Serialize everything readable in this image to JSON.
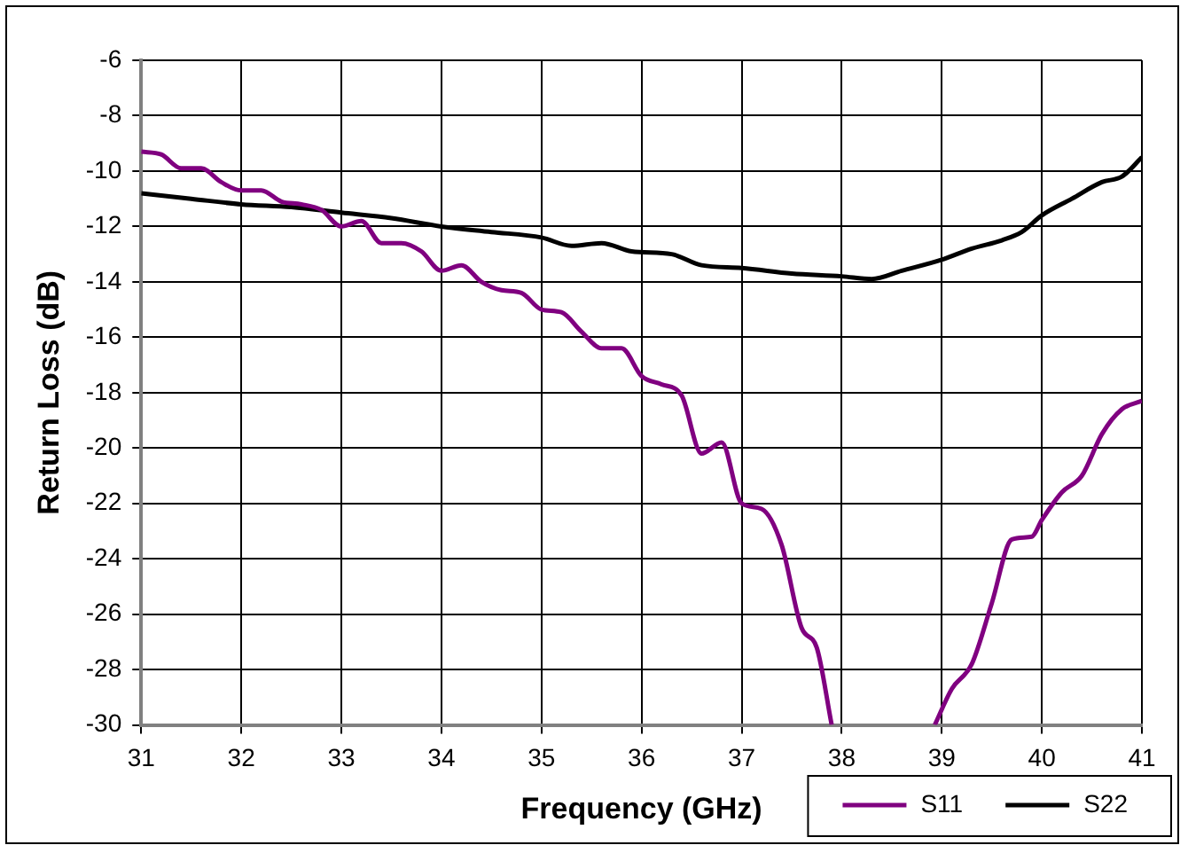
{
  "chart_data": {
    "type": "line",
    "xlabel": "Frequency (GHz)",
    "ylabel": "Return Loss (dB)",
    "xlim": [
      31,
      41
    ],
    "xticks": [
      31,
      32,
      33,
      34,
      35,
      36,
      37,
      38,
      39,
      40,
      41
    ],
    "ylim": [
      -30,
      -6
    ],
    "yticks": [
      -30,
      -28,
      -26,
      -24,
      -22,
      -20,
      -18,
      -16,
      -14,
      -12,
      -10,
      -8,
      -6
    ],
    "grid": true,
    "legend": "bottom right",
    "marker": "none",
    "line_style": "solid",
    "series": [
      {
        "name": "S11",
        "color": "#800080",
        "x": [
          31,
          31.2,
          31.4,
          31.6,
          31.8,
          32,
          32.2,
          32.4,
          32.6,
          32.8,
          33,
          33.2,
          33.4,
          33.6,
          33.8,
          34,
          34.2,
          34.4,
          34.6,
          34.8,
          35,
          35.2,
          35.4,
          35.6,
          35.8,
          36,
          36.2,
          36.4,
          36.6,
          36.8,
          37,
          37.2,
          37.4,
          37.6,
          37.75,
          37.9,
          38.4,
          38.93,
          39.1,
          39.3,
          39.5,
          39.7,
          39.9,
          40,
          40.2,
          40.4,
          40.6,
          40.8,
          41
        ],
        "values": [
          -9.3,
          -9.4,
          -9.9,
          -9.9,
          -10.4,
          -10.7,
          -10.7,
          -11.1,
          -11.2,
          -11.4,
          -12,
          -11.8,
          -12.6,
          -12.6,
          -12.9,
          -13.6,
          -13.4,
          -14,
          -14.3,
          -14.4,
          -15,
          -15.1,
          -15.8,
          -16.4,
          -16.4,
          -17.4,
          -17.7,
          -18.1,
          -20.2,
          -19.8,
          -22,
          -22.2,
          -23.5,
          -26.5,
          -27.2,
          -30,
          null,
          -30,
          -28.7,
          -27.8,
          -25.6,
          -23.3,
          -23.2,
          -22.6,
          -21.6,
          -21,
          -19.5,
          -18.6,
          -18.3
        ]
      },
      {
        "name": "S22",
        "color": "#000000",
        "x": [
          31,
          31.5,
          32,
          32.5,
          33,
          33.5,
          34,
          34.5,
          35,
          35.3,
          35.6,
          35.9,
          36.3,
          36.6,
          37,
          37.5,
          38,
          38.3,
          38.6,
          39,
          39.3,
          39.6,
          39.8,
          40,
          40.3,
          40.6,
          40.8,
          41
        ],
        "values": [
          -10.8,
          -11,
          -11.2,
          -11.3,
          -11.5,
          -11.7,
          -12,
          -12.2,
          -12.4,
          -12.7,
          -12.6,
          -12.9,
          -13,
          -13.4,
          -13.5,
          -13.7,
          -13.8,
          -13.9,
          -13.6,
          -13.2,
          -12.8,
          -12.5,
          -12.2,
          -11.6,
          -11,
          -10.4,
          -10.2,
          -9.5
        ]
      }
    ]
  }
}
